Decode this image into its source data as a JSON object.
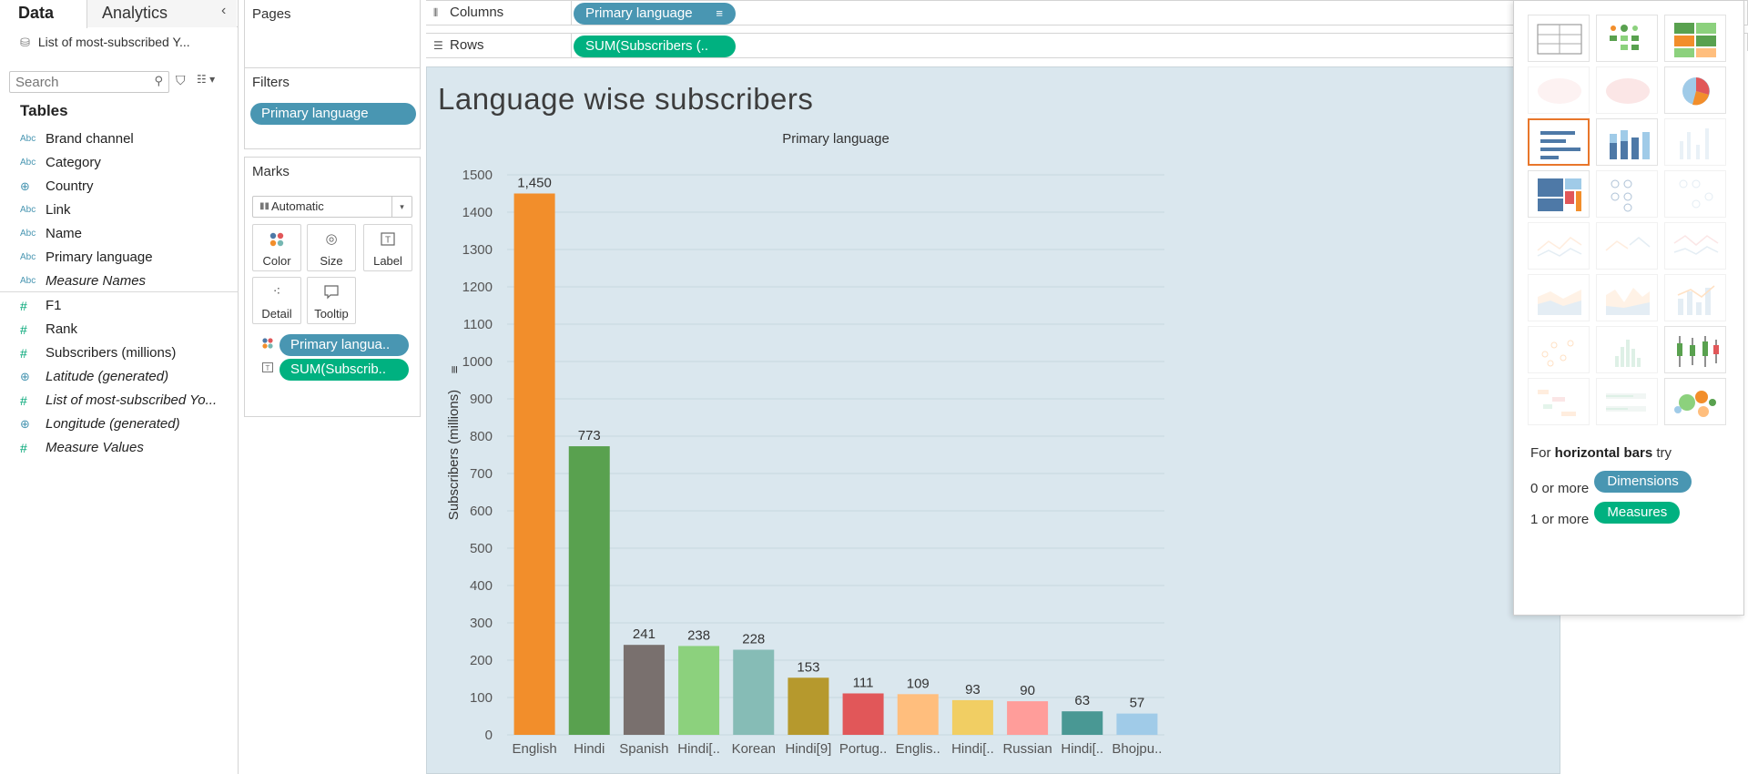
{
  "data_pane": {
    "tabs": {
      "data": "Data",
      "analytics": "Analytics"
    },
    "collapse_icon": "chevron-left-icon",
    "datasource_name": "List of most-subscribed Y...",
    "search_placeholder": "Search",
    "tables_heading": "Tables",
    "dimensions": [
      {
        "type": "Abc",
        "name": "Brand channel",
        "italic": false
      },
      {
        "type": "Abc",
        "name": "Category",
        "italic": false
      },
      {
        "type": "geo",
        "name": "Country",
        "italic": false
      },
      {
        "type": "Abc",
        "name": "Link",
        "italic": false
      },
      {
        "type": "Abc",
        "name": "Name",
        "italic": false
      },
      {
        "type": "Abc",
        "name": "Primary language",
        "italic": false
      },
      {
        "type": "Abc",
        "name": "Measure Names",
        "italic": true
      }
    ],
    "measures": [
      {
        "type": "#",
        "name": "F1",
        "italic": false
      },
      {
        "type": "#",
        "name": "Rank",
        "italic": false
      },
      {
        "type": "#",
        "name": "Subscribers (millions)",
        "italic": false
      },
      {
        "type": "geo",
        "name": "Latitude (generated)",
        "italic": true
      },
      {
        "type": "#",
        "name": "List of most-subscribed Yo...",
        "italic": true
      },
      {
        "type": "geo",
        "name": "Longitude (generated)",
        "italic": true
      },
      {
        "type": "#",
        "name": "Measure Values",
        "italic": true
      }
    ]
  },
  "cards": {
    "pages_title": "Pages",
    "filters_title": "Filters",
    "filter_pill": "Primary language",
    "marks_title": "Marks",
    "marks_type": "Automatic",
    "mark_buttons": {
      "color": "Color",
      "size": "Size",
      "label": "Label",
      "detail": "Detail",
      "tooltip": "Tooltip"
    },
    "mark_pills": {
      "color_pill": "Primary langua..",
      "label_pill": "SUM(Subscrib.."
    }
  },
  "shelves": {
    "columns_label": "Columns",
    "rows_label": "Rows",
    "columns_pill": "Primary language",
    "rows_pill": "SUM(Subscribers (.."
  },
  "sheet": {
    "title": "Language wise subscribers"
  },
  "chart_data": {
    "type": "bar",
    "title": "Language wise subscribers",
    "column_header": "Primary language",
    "xlabel": "",
    "ylabel": "Subscribers (millions)",
    "ylim": [
      0,
      1500
    ],
    "yticks": [
      0,
      100,
      200,
      300,
      400,
      500,
      600,
      700,
      800,
      900,
      1000,
      1100,
      1200,
      1300,
      1400,
      1500
    ],
    "grid": true,
    "categories": [
      "English",
      "Hindi",
      "Spanish",
      "Hindi[..",
      "Korean",
      "Hindi[9]",
      "Portug..",
      "Englis..",
      "Hindi[..",
      "Russian",
      "Hindi[..",
      "Bhojpu.."
    ],
    "values": [
      1450,
      773,
      241,
      238,
      228,
      153,
      111,
      109,
      93,
      90,
      63,
      57
    ],
    "value_labels": [
      "1,450",
      "773",
      "241",
      "238",
      "228",
      "153",
      "111",
      "109",
      "93",
      "90",
      "63",
      "57"
    ],
    "colors": [
      "#f28e2b",
      "#59a14f",
      "#79706e",
      "#8cd17d",
      "#86bcb6",
      "#b6992d",
      "#e15759",
      "#ffbe7d",
      "#f1ce63",
      "#ff9d9a",
      "#499894",
      "#a0cbe8"
    ]
  },
  "show_me": {
    "hint_prefix": "For ",
    "hint_bold": "horizontal bars",
    "hint_suffix": " try",
    "dims_prefix": "0 or more",
    "dims_pill": "Dimensions",
    "meas_prefix": "1 or more",
    "meas_pill": "Measures"
  }
}
